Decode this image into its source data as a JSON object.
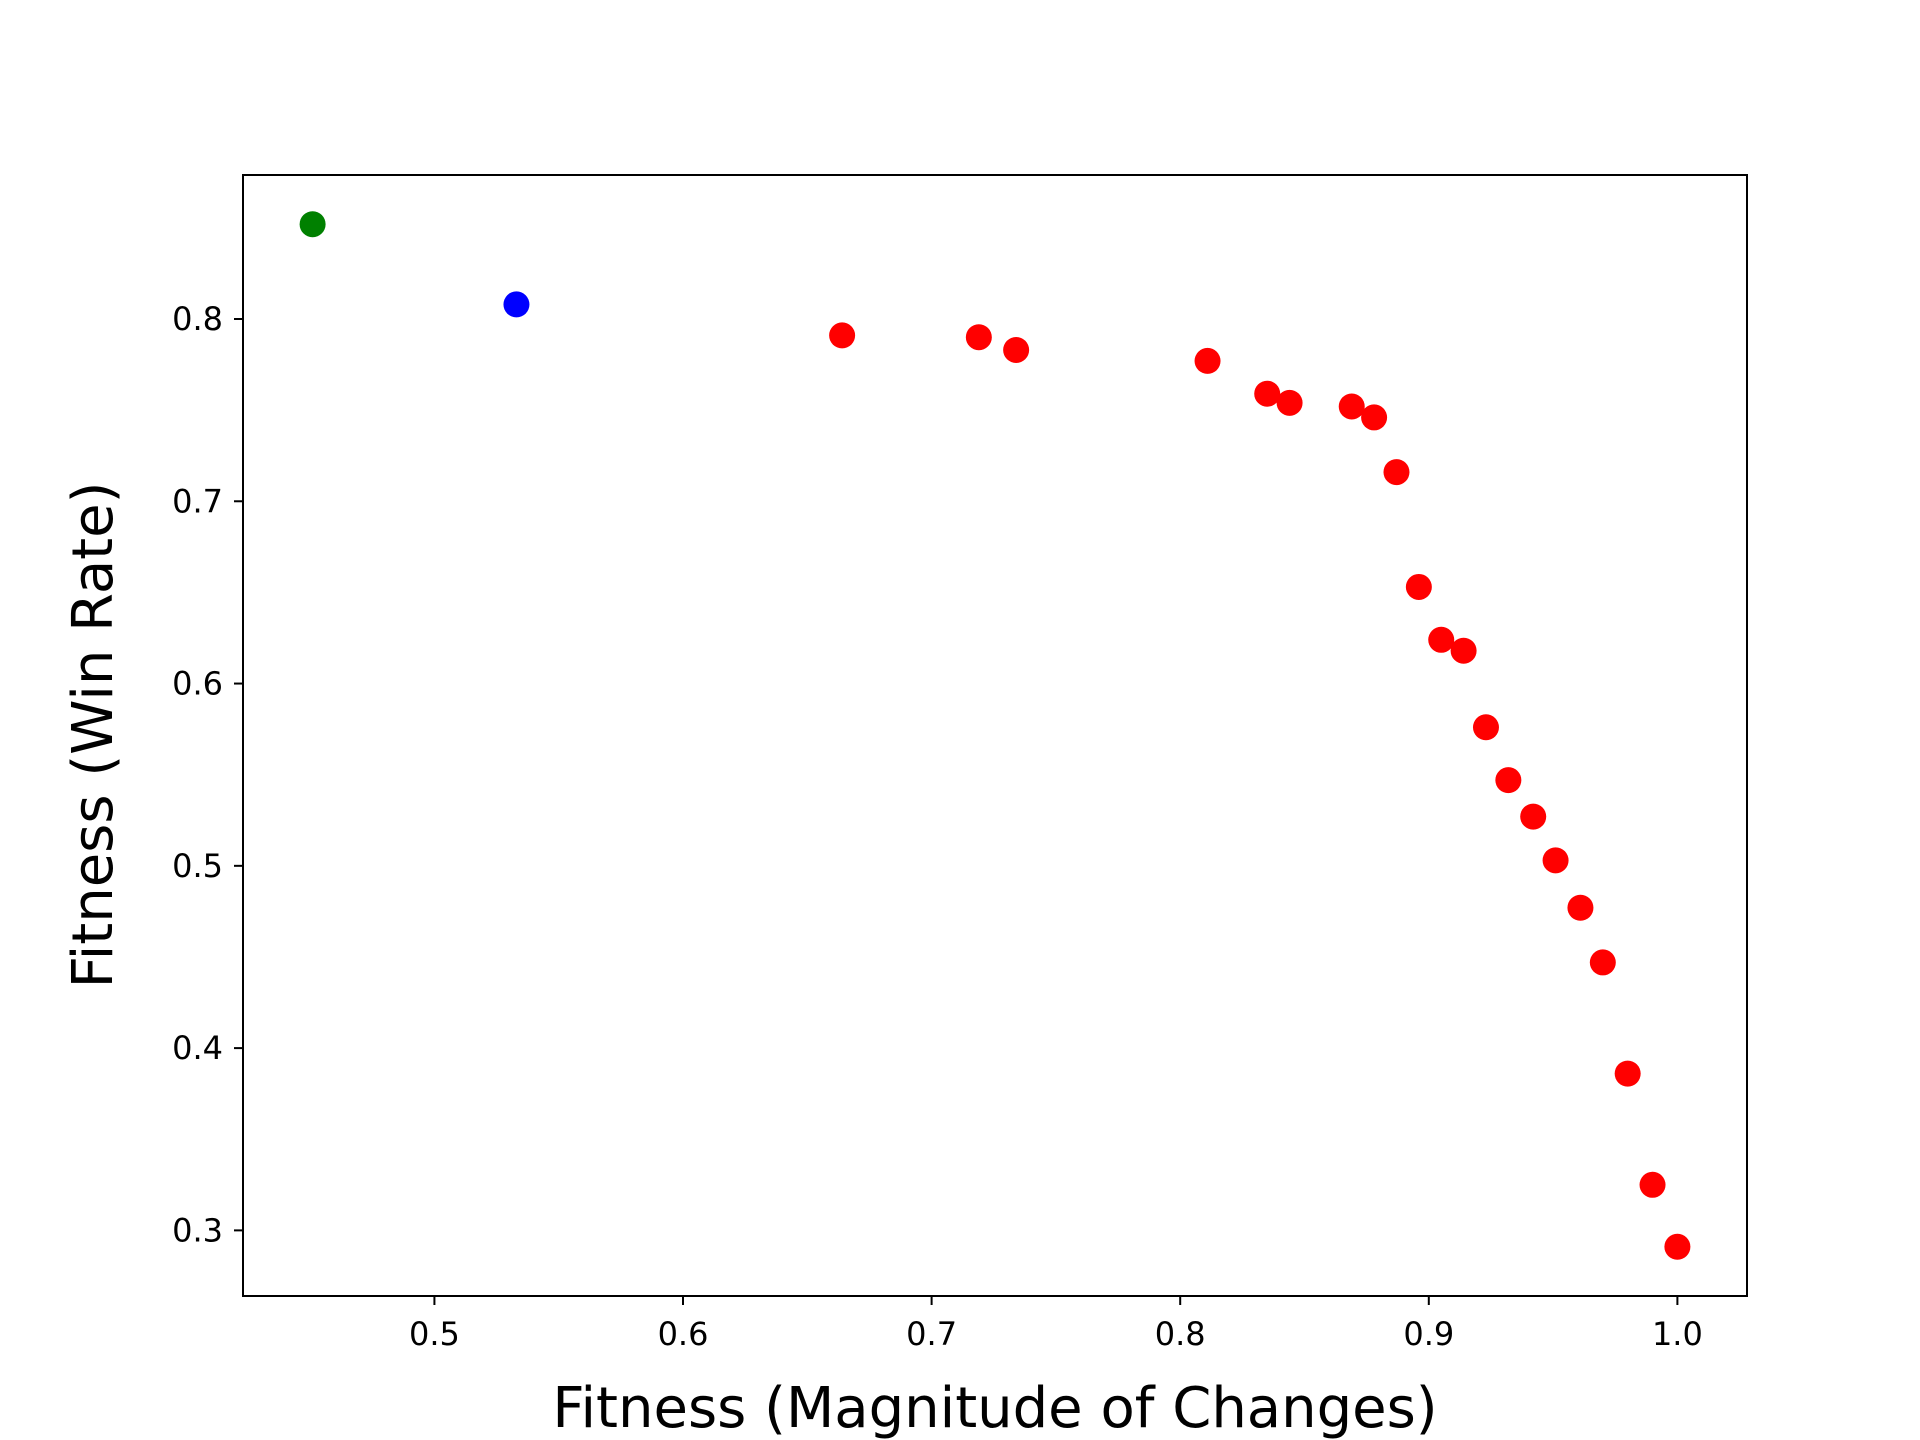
{
  "chart_data": {
    "type": "scatter",
    "title": "",
    "xlabel": "Fitness (Magnitude of Changes)",
    "ylabel": "Fitness (Win Rate)",
    "xlim": [
      0.423,
      1.028
    ],
    "ylim": [
      0.264,
      0.879
    ],
    "xticks": [
      0.5,
      0.6,
      0.7,
      0.8,
      0.9,
      1.0
    ],
    "xtick_labels": [
      "0.5",
      "0.6",
      "0.7",
      "0.8",
      "0.9",
      "1.0"
    ],
    "yticks": [
      0.3,
      0.4,
      0.5,
      0.6,
      0.7,
      0.8
    ],
    "ytick_labels": [
      "0.3",
      "0.4",
      "0.5",
      "0.6",
      "0.7",
      "0.8"
    ],
    "grid": false,
    "legend": "none",
    "series": [
      {
        "color": "#008000",
        "points": [
          [
            0.451,
            0.852
          ]
        ]
      },
      {
        "color": "#0000ff",
        "points": [
          [
            0.533,
            0.808
          ]
        ]
      },
      {
        "color": "#ff0000",
        "points": [
          [
            0.664,
            0.791
          ],
          [
            0.719,
            0.79
          ],
          [
            0.734,
            0.783
          ],
          [
            0.811,
            0.777
          ],
          [
            0.835,
            0.759
          ],
          [
            0.844,
            0.754
          ],
          [
            0.869,
            0.752
          ],
          [
            0.878,
            0.746
          ],
          [
            0.887,
            0.716
          ],
          [
            0.896,
            0.653
          ],
          [
            0.905,
            0.624
          ],
          [
            0.914,
            0.618
          ],
          [
            0.923,
            0.576
          ],
          [
            0.932,
            0.547
          ],
          [
            0.942,
            0.527
          ],
          [
            0.951,
            0.503
          ],
          [
            0.961,
            0.477
          ],
          [
            0.97,
            0.447
          ],
          [
            0.98,
            0.386
          ],
          [
            0.99,
            0.325
          ],
          [
            1.0,
            0.291
          ]
        ]
      }
    ]
  }
}
